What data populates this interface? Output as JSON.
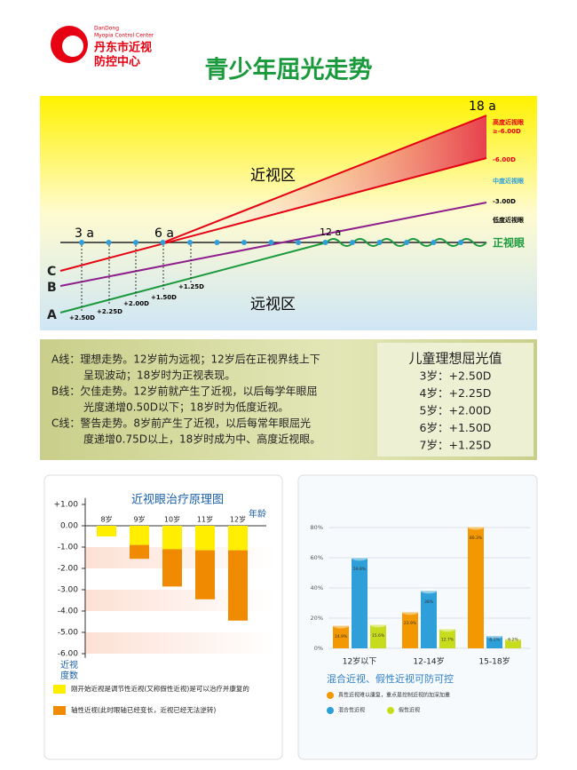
{
  "header": {
    "logo_en": [
      "DanDong",
      "Myopia Control Center"
    ],
    "logo_cn": [
      "丹东市近视",
      "防控中心"
    ],
    "title": "青少年屈光走势"
  },
  "trend": {
    "ages": [
      "3 a",
      "6 a",
      "12 a",
      "18 a"
    ],
    "zones": [
      "近视区",
      "远视区"
    ],
    "lines": [
      "C",
      "B",
      "A"
    ],
    "start_points": [
      "+2.50D",
      "+2.25D",
      "+2.00D",
      "+1.50D",
      "+1.25D"
    ],
    "levels": [
      "高度近视眼",
      "≥-6.00D",
      "-6.00D",
      "中度近视眼",
      "-3.00D",
      "低度近视眼",
      "正视眼"
    ]
  },
  "description": {
    "lines": [
      "A线：理想走势。12岁前为远视；12岁后在正视界线上下",
      "　　　呈现波动；18岁时为正视表现。",
      "B线：欠佳走势。12岁前就产生了近视，以后每学年眼屈",
      "　　　光度递增0.50D以下；18岁时为低度近视。",
      "C线：警告走势。8岁前产生了近视，以后每常年眼屈光",
      "　　　度递增0.75D以上，18岁时成为中、高度近视眼。"
    ],
    "ideal_title": "儿童理想屈光值",
    "ideal_values": [
      "3岁：+2.50D",
      "4岁：+2.25D",
      "5岁：+2.00D",
      "6岁：+1.50D",
      "7岁：+1.25D"
    ]
  },
  "treatment_chart": {
    "title": "近视眼治疗原理图",
    "x_label": "年龄",
    "y_label": [
      "近视",
      "度数"
    ],
    "categories": [
      "8岁",
      "9岁",
      "10岁",
      "11岁",
      "12岁"
    ],
    "ylim": [
      -6.2,
      1.3
    ],
    "yticks": [
      {
        "value": 1,
        "label": "+1.00"
      },
      {
        "value": 0,
        "label": "0.00"
      },
      {
        "value": -1,
        "label": "-1.00"
      },
      {
        "value": -2,
        "label": "-2.00"
      },
      {
        "value": -3,
        "label": "-3.00"
      },
      {
        "value": -4,
        "label": "-4.00"
      },
      {
        "value": -5,
        "label": "-5.00"
      },
      {
        "value": -6,
        "label": "-6.00"
      }
    ],
    "series": [
      {
        "name": "刚开始近视是调节性近视(又称假性近视)是可以治疗并康复的",
        "color": "#ffee00",
        "values": [
          -0.5,
          -0.9,
          -1.1,
          -1.15,
          -1.15
        ]
      },
      {
        "name": "轴性近视(此时眼轴已经变长，近视已经无法逆转)",
        "color": "#f08a00",
        "values": [
          0,
          -0.65,
          -1.75,
          -2.3,
          -3.3
        ]
      }
    ]
  },
  "prevalence_chart": {
    "title": "混合近视、假性近视可防可控",
    "categories": [
      "12岁以下",
      "12-14岁",
      "15-18岁"
    ],
    "ylim": [
      0,
      90
    ],
    "yticks": [
      {
        "value": 0,
        "label": "0%"
      },
      {
        "value": 20,
        "label": "20%"
      },
      {
        "value": 40,
        "label": "40%"
      },
      {
        "value": 60,
        "label": "60%"
      },
      {
        "value": 80,
        "label": "80%"
      }
    ],
    "series": [
      {
        "name": "真性近视难以康复，重点是控制近视的加深加重",
        "color": "#f39800",
        "values": [
          14.9,
          23.9,
          80.3
        ],
        "value_labels": [
          "14.9%",
          "23.9%",
          "80.3%"
        ]
      },
      {
        "name": "混合性近视",
        "color": "#2e9fd8",
        "values": [
          59.8,
          38,
          8.1
        ],
        "value_labels": [
          "59.8%",
          "38%",
          "8.1%"
        ]
      },
      {
        "name": "假性近视",
        "color": "#c8dc1e",
        "values": [
          15.6,
          12.7,
          6.2
        ],
        "value_labels": [
          "15.6%",
          "12.7%",
          "6.2%"
        ]
      }
    ]
  }
}
